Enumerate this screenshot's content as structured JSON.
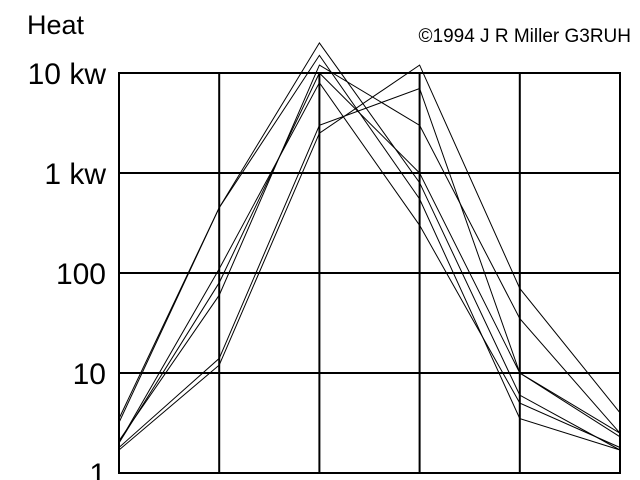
{
  "chart_data": {
    "type": "line",
    "title": "",
    "ylabel": "Heat",
    "xlabel": "",
    "annotation": "©1994 J R Miller G3RUH",
    "yscale": "log",
    "ylim": [
      1,
      10000
    ],
    "xlim": [
      0,
      5
    ],
    "grid": true,
    "yticks": [
      {
        "value": 10000,
        "label": "10 kw"
      },
      {
        "value": 1000,
        "label": "1 kw"
      },
      {
        "value": 100,
        "label": "100"
      },
      {
        "value": 10,
        "label": "10"
      },
      {
        "value": 1,
        "label": "1"
      }
    ],
    "xticks": [
      0,
      1,
      2,
      3,
      4,
      5
    ],
    "series": [
      {
        "x": [
          0,
          1,
          2,
          3,
          4,
          5
        ],
        "values": [
          3.5,
          450,
          20000,
          800,
          6,
          1.7
        ]
      },
      {
        "x": [
          0,
          1,
          2,
          3,
          4,
          5
        ],
        "values": [
          3.2,
          450,
          15000,
          550,
          3.5,
          1.7
        ]
      },
      {
        "x": [
          0,
          1,
          2,
          3,
          4,
          5
        ],
        "values": [
          2,
          80,
          10000,
          1000,
          10,
          2.3
        ]
      },
      {
        "x": [
          0,
          1,
          2,
          3,
          4,
          5
        ],
        "values": [
          2.1,
          60,
          12000,
          3000,
          35,
          2.5
        ]
      },
      {
        "x": [
          0,
          1,
          2,
          3,
          4,
          5
        ],
        "values": [
          1.7,
          12,
          2500,
          12000,
          70,
          4
        ]
      },
      {
        "x": [
          0,
          1,
          2,
          3,
          4,
          5
        ],
        "values": [
          1.8,
          14,
          3000,
          7000,
          10,
          2.5
        ]
      },
      {
        "x": [
          0,
          1,
          2,
          3,
          4,
          5
        ],
        "values": [
          2,
          110,
          8000,
          300,
          5,
          1.8
        ]
      }
    ]
  }
}
